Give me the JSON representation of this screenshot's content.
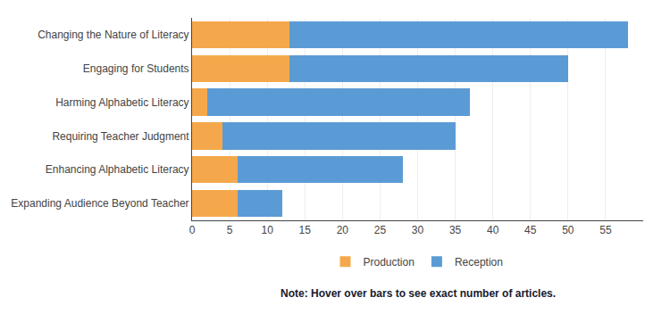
{
  "chart_data": {
    "type": "bar",
    "orientation": "horizontal",
    "stacked": true,
    "categories": [
      "Expanding Audience Beyond Teacher",
      "Enhancing Alphabetic Literacy",
      "Requiring Teacher Judgment",
      "Harming Alphabetic Literacy",
      "Engaging for Students",
      "Changing the Nature of Literacy"
    ],
    "series": [
      {
        "name": "Production",
        "color": "#F5A84B",
        "values": [
          6,
          6,
          4,
          2,
          13,
          13
        ]
      },
      {
        "name": "Reception",
        "color": "#5B9BD5",
        "values": [
          6,
          22,
          31,
          35,
          37,
          45
        ]
      }
    ],
    "xlim": [
      0,
      60
    ],
    "xticks": [
      0,
      5,
      10,
      15,
      20,
      25,
      30,
      35,
      40,
      45,
      50,
      55
    ],
    "grid": true,
    "legend": "bottom",
    "annotations": [
      "Note: Hover over bars to see exact number of articles."
    ]
  }
}
